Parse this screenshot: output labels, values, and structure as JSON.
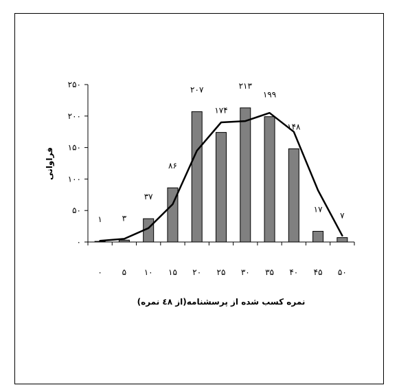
{
  "chart_data": {
    "type": "bar",
    "categories": [
      "۰",
      "۵",
      "۱۰",
      "۱۵",
      "۲۰",
      "۲۵",
      "۳۰",
      "۳۵",
      "۴۰",
      "۴۵",
      "۵۰"
    ],
    "x": [
      0,
      5,
      10,
      15,
      20,
      25,
      30,
      35,
      40,
      45,
      50
    ],
    "values": [
      1,
      3,
      37,
      86,
      207,
      174,
      213,
      199,
      148,
      17,
      7
    ],
    "data_labels": [
      "۱",
      "۳",
      "۳۷",
      "۸۶",
      "۲۰۷",
      "۱۷۴",
      "۲۱۳",
      "۱۹۹",
      "۱۴۸",
      "۱۷",
      "۷"
    ],
    "trend_line": [
      2,
      5,
      22,
      60,
      145,
      190,
      192,
      205,
      175,
      82,
      10
    ],
    "xlabel": "نمره کسب شده از پرسشنامه(از ٤۸ نمره)",
    "ylabel": "فراوانی",
    "ylim": [
      0,
      250
    ],
    "yticks": [
      0,
      50,
      100,
      150,
      200,
      250
    ],
    "ytick_labels": [
      "۰",
      "۵۰",
      "۱۰۰",
      "۱۵۰",
      "۲۰۰",
      "۲۵۰"
    ],
    "grid": false,
    "legend": "none",
    "bar_color": "#808080",
    "line_color": "#000000"
  }
}
